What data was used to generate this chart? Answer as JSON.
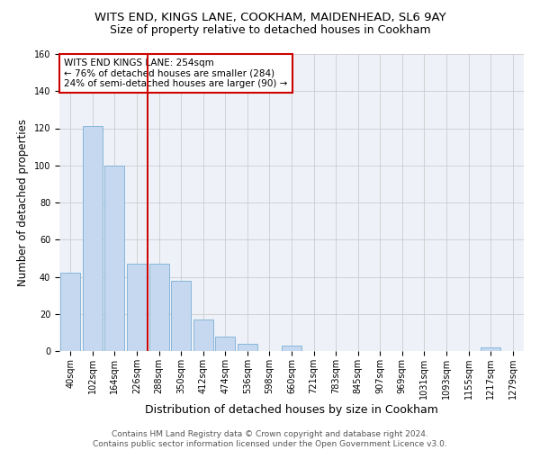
{
  "title1": "WITS END, KINGS LANE, COOKHAM, MAIDENHEAD, SL6 9AY",
  "title2": "Size of property relative to detached houses in Cookham",
  "xlabel": "Distribution of detached houses by size in Cookham",
  "ylabel": "Number of detached properties",
  "footnote1": "Contains HM Land Registry data © Crown copyright and database right 2024.",
  "footnote2": "Contains public sector information licensed under the Open Government Licence v3.0.",
  "bar_labels": [
    "40sqm",
    "102sqm",
    "164sqm",
    "226sqm",
    "288sqm",
    "350sqm",
    "412sqm",
    "474sqm",
    "536sqm",
    "598sqm",
    "660sqm",
    "721sqm",
    "783sqm",
    "845sqm",
    "907sqm",
    "969sqm",
    "1031sqm",
    "1093sqm",
    "1155sqm",
    "1217sqm",
    "1279sqm"
  ],
  "bar_values": [
    42,
    121,
    100,
    47,
    47,
    38,
    17,
    8,
    4,
    0,
    3,
    0,
    0,
    0,
    0,
    0,
    0,
    0,
    0,
    2,
    0
  ],
  "bar_color": "#c5d8ef",
  "bar_edge_color": "#7bafd4",
  "vline_x": 3.5,
  "vline_color": "#cc0000",
  "annotation_line1": "WITS END KINGS LANE: 254sqm",
  "annotation_line2": "← 76% of detached houses are smaller (284)",
  "annotation_line3": "24% of semi-detached houses are larger (90) →",
  "annotation_box_color": "#cc0000",
  "ylim": [
    0,
    160
  ],
  "yticks": [
    0,
    20,
    40,
    60,
    80,
    100,
    120,
    140,
    160
  ],
  "grid_color": "#cccccc",
  "bg_color": "#eef2f8",
  "title1_fontsize": 9.5,
  "title2_fontsize": 9,
  "xlabel_fontsize": 9,
  "ylabel_fontsize": 8.5,
  "tick_fontsize": 7,
  "annot_fontsize": 7.5,
  "footnote_fontsize": 6.5
}
